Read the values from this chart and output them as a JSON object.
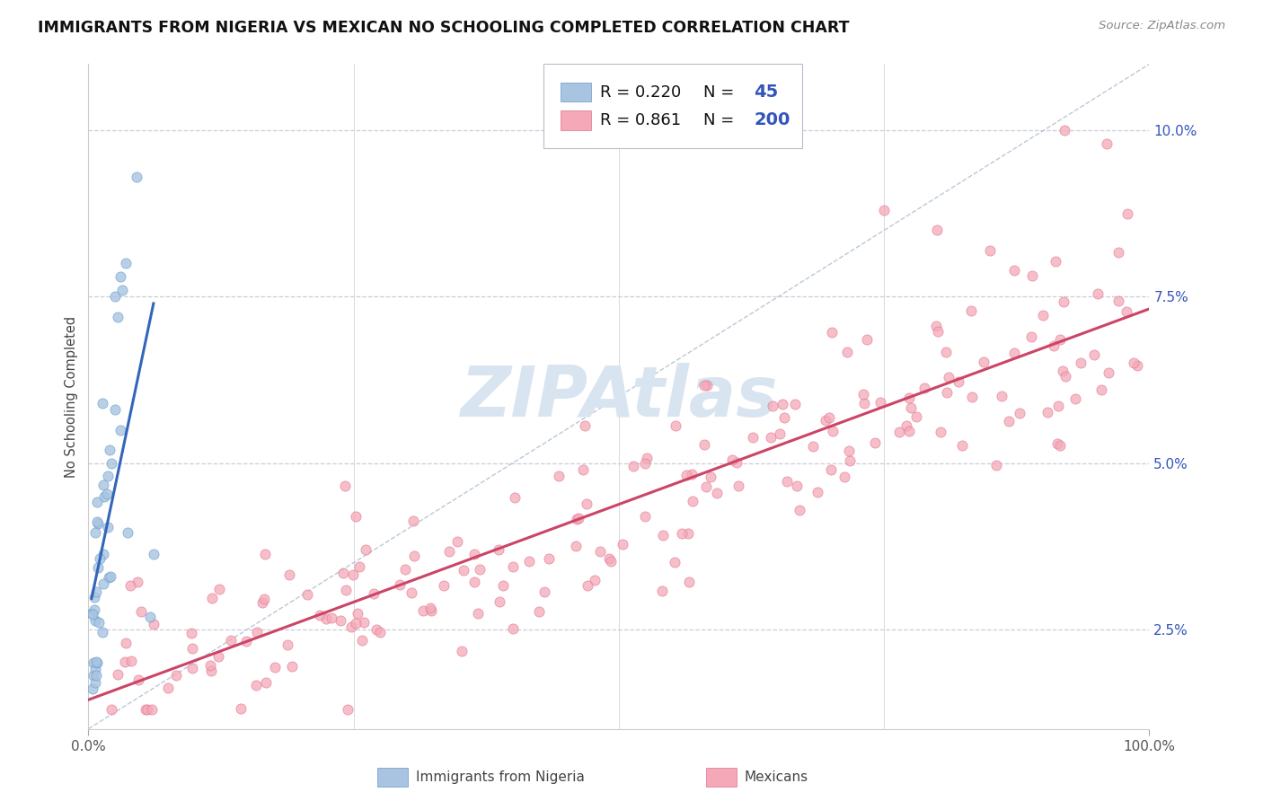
{
  "title": "IMMIGRANTS FROM NIGERIA VS MEXICAN NO SCHOOLING COMPLETED CORRELATION CHART",
  "source_text": "Source: ZipAtlas.com",
  "ylabel": "No Schooling Completed",
  "nigeria_R": 0.22,
  "nigeria_N": 45,
  "mexico_R": 0.861,
  "mexico_N": 200,
  "nigeria_dot_color": "#a8c4e0",
  "nigeria_dot_edge": "#6699cc",
  "mexico_dot_color": "#f4a8b8",
  "mexico_dot_edge": "#e0708a",
  "nigeria_line_color": "#3366bb",
  "mexico_line_color": "#cc4466",
  "reference_line_color": "#aabbcc",
  "background_color": "#ffffff",
  "grid_color": "#ccccdd",
  "title_color": "#111111",
  "legend_r_color": "#111111",
  "legend_n_label_color": "#111111",
  "legend_n_value_color": "#3355bb",
  "ytick_color": "#3355bb",
  "watermark_color": "#d8e4f0",
  "xlim": [
    0.0,
    1.0
  ],
  "ylim": [
    0.01,
    0.11
  ],
  "yticks": [
    0.025,
    0.05,
    0.075,
    0.1
  ],
  "ytick_labels": [
    "2.5%",
    "5.0%",
    "7.5%",
    "10.0%"
  ],
  "xticks": [
    0.0,
    1.0
  ],
  "xtick_labels": [
    "0.0%",
    "100.0%"
  ]
}
